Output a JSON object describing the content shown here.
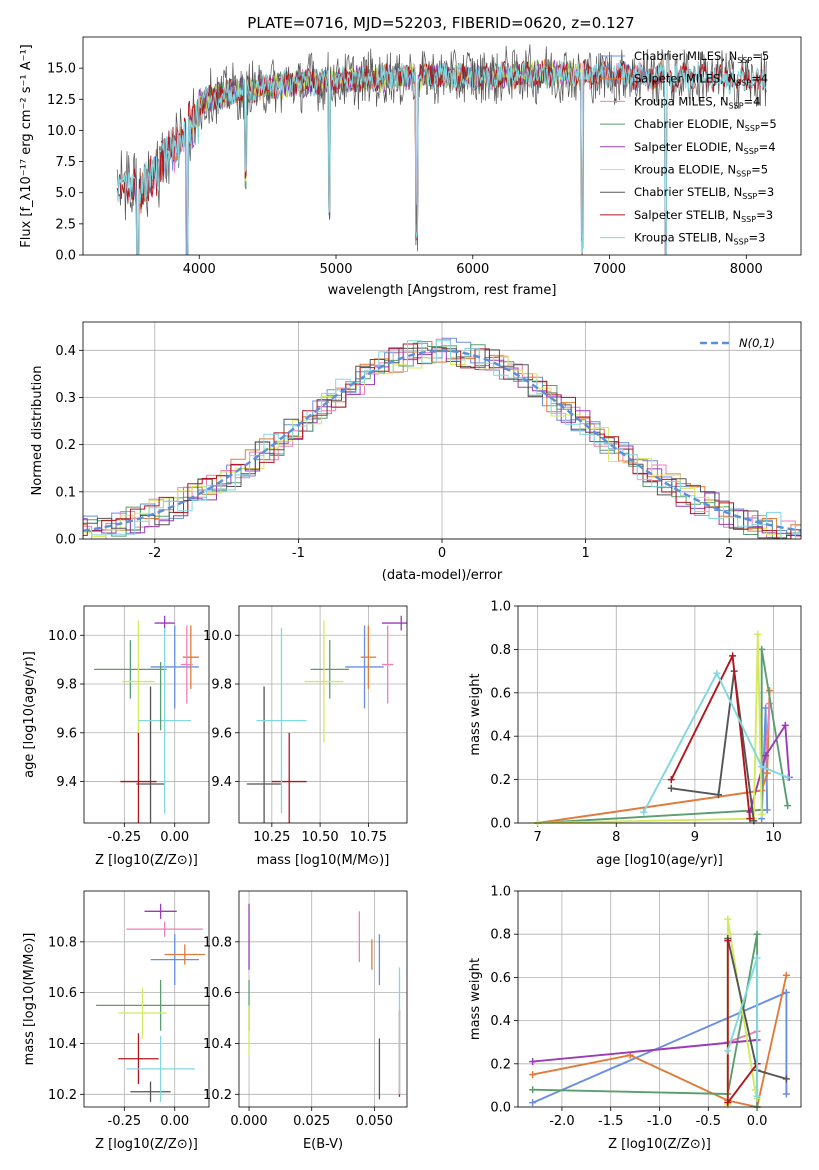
{
  "colors": {
    "Chabrier MILES": "#6a8fe0",
    "Salpeter MILES": "#e07b39",
    "Kroupa MILES": "#f07fb8",
    "Chabrier ELODIE": "#5a9e6f",
    "Salpeter ELODIE": "#9b3bb8",
    "Kroupa ELODIE": "#d4e860",
    "Chabrier STELIB": "#555555",
    "Salpeter STELIB": "#b0171e",
    "Kroupa STELIB": "#80d8e0",
    "dgeom": "#3a3a3a"
  },
  "chart_data": [
    {
      "id": "spectrum",
      "type": "line",
      "title": "PLATE=0716, MJD=52203, FIBERID=0620, z=0.127",
      "xlabel": "wavelength [Angstrom, rest frame]",
      "ylabel": "Flux [f_λ10⁻¹⁷ erg cm⁻² s⁻¹ A⁻¹]",
      "xlim": [
        3150,
        8400
      ],
      "ylim": [
        0,
        17.5
      ],
      "xticks": [
        4000,
        5000,
        6000,
        7000,
        8000
      ],
      "yticks": [
        0.0,
        2.5,
        5.0,
        7.5,
        10.0,
        12.5,
        15.0
      ],
      "legend_position": "right",
      "grid": false,
      "continuum": {
        "x": [
          3400,
          3500,
          3600,
          3700,
          3800,
          3900,
          4000,
          4200,
          4400,
          4600,
          4800,
          5000,
          5200,
          5400,
          5600,
          5800,
          6000,
          6200,
          6400,
          6600,
          6800,
          7000,
          7200,
          7400,
          7600,
          7800,
          8000,
          8150
        ],
        "y": [
          7.0,
          6.5,
          6.5,
          8.5,
          9.5,
          11.0,
          12.2,
          13.0,
          13.3,
          13.6,
          13.9,
          14.0,
          14.1,
          14.2,
          14.3,
          14.4,
          14.3,
          14.4,
          14.5,
          14.5,
          14.5,
          14.4,
          14.4,
          14.3,
          14.3,
          14.2,
          14.0,
          13.8
        ]
      },
      "series": [
        {
          "name": "Chabrier MILES",
          "nssp": "5"
        },
        {
          "name": "Salpeter MILES",
          "nssp": "4"
        },
        {
          "name": "Kroupa MILES",
          "nssp": "4"
        },
        {
          "name": "Chabrier ELODIE",
          "nssp": "5"
        },
        {
          "name": "Salpeter ELODIE",
          "nssp": "4"
        },
        {
          "name": "Kroupa ELODIE",
          "nssp": "5"
        },
        {
          "name": "Chabrier STELIB",
          "nssp": "3"
        },
        {
          "name": "Salpeter STELIB",
          "nssp": "3"
        },
        {
          "name": "Kroupa STELIB",
          "nssp": "3"
        }
      ],
      "range_x": {
        "Chabrier MILES": [
          3500,
          7410
        ],
        "Salpeter MILES": [
          3550,
          7410
        ],
        "Kroupa MILES": [
          3550,
          7410
        ],
        "Chabrier ELODIE": [
          3910,
          6800
        ],
        "Salpeter ELODIE": [
          3910,
          6800
        ],
        "Kroupa ELODIE": [
          3910,
          6800
        ],
        "Chabrier STELIB": [
          3400,
          8150
        ],
        "Salpeter STELIB": [
          3400,
          8150
        ],
        "Kroupa STELIB": [
          3400,
          8150
        ]
      },
      "absorption_lines": [
        {
          "x": 3550,
          "depth": 12
        },
        {
          "x": 3910,
          "depth": 15
        },
        {
          "x": 4340,
          "depth": 7
        },
        {
          "x": 4950,
          "depth": 10
        },
        {
          "x": 5590,
          "depth": 12
        },
        {
          "x": 6800,
          "depth": 14
        },
        {
          "x": 7410,
          "depth": 15
        }
      ]
    },
    {
      "id": "residuals",
      "type": "line",
      "xlabel": "(data-model)/error",
      "ylabel": "Normed distribution",
      "xlim": [
        -2.5,
        2.5
      ],
      "ylim": [
        0,
        0.46
      ],
      "xticks": [
        -2,
        -1,
        0,
        1,
        2
      ],
      "yticks": [
        0.0,
        0.1,
        0.2,
        0.3,
        0.4
      ],
      "grid": true,
      "reference_label": "N(0,1)",
      "legend_position": "upper right"
    },
    {
      "id": "age_vs_Z",
      "type": "scatter",
      "xlabel": "Z [log10(Z/Z⊙)]",
      "ylabel": "age [log10(age/yr)]",
      "xlim": [
        -0.45,
        0.17
      ],
      "ylim": [
        9.23,
        10.12
      ],
      "xticks": [
        -0.25,
        0.0
      ],
      "yticks": [
        9.4,
        9.6,
        9.8,
        10.0
      ],
      "grid": true,
      "points": [
        {
          "name": "Chabrier MILES",
          "x": 0.0,
          "xerr": 0.12,
          "y": 9.87,
          "yerr": 0.17
        },
        {
          "name": "Salpeter MILES",
          "x": 0.08,
          "xerr": 0.04,
          "y": 9.91,
          "yerr": 0.13
        },
        {
          "name": "Kroupa MILES",
          "x": 0.06,
          "xerr": 0.03,
          "y": 9.88,
          "yerr": 0.16
        },
        {
          "name": "Chabrier ELODIE",
          "x": -0.22,
          "xerr": 0.18,
          "y": 9.86,
          "yerr": 0.12
        },
        {
          "name": "Salpeter ELODIE",
          "x": -0.05,
          "xerr": 0.05,
          "y": 10.05,
          "yerr": 0.03
        },
        {
          "name": "Kroupa ELODIE",
          "x": -0.18,
          "xerr": 0.08,
          "y": 9.81,
          "yerr": 0.25
        },
        {
          "name": "Chabrier STELIB",
          "x": -0.12,
          "xerr": 0.07,
          "y": 9.39,
          "yerr": 0.4
        },
        {
          "name": "Salpeter STELIB",
          "x": -0.18,
          "xerr": 0.09,
          "y": 9.4,
          "yerr": 0.2
        },
        {
          "name": "Kroupa STELIB",
          "x": -0.05,
          "xerr": 0.13,
          "y": 9.65,
          "yerr": 0.38
        },
        {
          "name": "Chabrier ELODIE",
          "x": -0.07,
          "xerr": 0.0,
          "y": 9.75,
          "yerr": 0.14
        }
      ]
    },
    {
      "id": "age_vs_mass",
      "type": "scatter",
      "xlabel": "mass [log10(M/M⊙)]",
      "xlim": [
        10.08,
        10.95
      ],
      "ylim": [
        9.23,
        10.12
      ],
      "xticks": [
        10.25,
        10.5,
        10.75
      ],
      "yticks": [
        9.4,
        9.6,
        9.8,
        10.0
      ],
      "grid": true,
      "points": [
        {
          "name": "Chabrier MILES",
          "x": 10.73,
          "xerr": 0.1,
          "y": 9.87,
          "yerr": 0.17
        },
        {
          "name": "Salpeter MILES",
          "x": 10.75,
          "xerr": 0.04,
          "y": 9.91,
          "yerr": 0.13
        },
        {
          "name": "Kroupa MILES",
          "x": 10.85,
          "xerr": 0.03,
          "y": 9.88,
          "yerr": 0.16
        },
        {
          "name": "Chabrier ELODIE",
          "x": 10.55,
          "xerr": 0.1,
          "y": 9.86,
          "yerr": 0.12
        },
        {
          "name": "Salpeter ELODIE",
          "x": 10.92,
          "xerr": 0.1,
          "y": 10.05,
          "yerr": 0.03
        },
        {
          "name": "Kroupa ELODIE",
          "x": 10.52,
          "xerr": 0.1,
          "y": 9.81,
          "yerr": 0.25
        },
        {
          "name": "Chabrier STELIB",
          "x": 10.21,
          "xerr": 0.09,
          "y": 9.39,
          "yerr": 0.4
        },
        {
          "name": "Salpeter STELIB",
          "x": 10.34,
          "xerr": 0.09,
          "y": 9.4,
          "yerr": 0.2
        },
        {
          "name": "Kroupa STELIB",
          "x": 10.3,
          "xerr": 0.13,
          "y": 9.65,
          "yerr": 0.38
        }
      ]
    },
    {
      "id": "weight_vs_age",
      "type": "line",
      "xlabel": "age [log10(age/yr)]",
      "ylabel": "mass weight",
      "xlim": [
        6.75,
        10.35
      ],
      "ylim": [
        0,
        1.0
      ],
      "xticks": [
        7,
        8,
        9,
        10
      ],
      "yticks": [
        0.0,
        0.2,
        0.4,
        0.6,
        0.8,
        1.0
      ],
      "grid": true,
      "series": [
        {
          "name": "Chabrier MILES",
          "x": [
            9.85,
            9.9,
            9.92
          ],
          "y": [
            0.02,
            0.53,
            0.06
          ]
        },
        {
          "name": "Salpeter MILES",
          "x": [
            7.0,
            9.85,
            9.92,
            9.95
          ],
          "y": [
            0.0,
            0.15,
            0.23,
            0.61
          ]
        },
        {
          "name": "Kroupa MILES",
          "x": [
            9.9,
            9.95
          ],
          "y": [
            0.3,
            0.55
          ]
        },
        {
          "name": "Chabrier ELODIE",
          "x": [
            7.0,
            9.85,
            9.85,
            10.18
          ],
          "y": [
            0.0,
            0.06,
            0.8,
            0.08
          ]
        },
        {
          "name": "Salpeter ELODIE",
          "x": [
            9.7,
            9.9,
            10.15,
            10.2
          ],
          "y": [
            0.05,
            0.31,
            0.45,
            0.21
          ]
        },
        {
          "name": "Kroupa ELODIE",
          "x": [
            7.0,
            9.75,
            9.8,
            9.85
          ],
          "y": [
            0.0,
            0.02,
            0.87,
            0.04
          ]
        },
        {
          "name": "Chabrier STELIB",
          "x": [
            8.7,
            9.3,
            9.5,
            9.75
          ],
          "y": [
            0.16,
            0.13,
            0.7,
            0.01
          ]
        },
        {
          "name": "Salpeter STELIB",
          "x": [
            8.7,
            9.48,
            9.7
          ],
          "y": [
            0.2,
            0.77,
            0.02
          ]
        },
        {
          "name": "Kroupa STELIB",
          "x": [
            8.35,
            9.28,
            9.85,
            10.18
          ],
          "y": [
            0.05,
            0.69,
            0.26,
            0.21
          ]
        }
      ]
    },
    {
      "id": "mass_vs_Z",
      "type": "scatter",
      "xlabel": "Z [log10(Z/Z⊙)]",
      "ylabel": "mass [log10(M/M⊙)]",
      "xlim": [
        -0.45,
        0.17
      ],
      "ylim": [
        10.15,
        11.0
      ],
      "xticks": [
        -0.25,
        0.0
      ],
      "yticks": [
        10.2,
        10.4,
        10.6,
        10.8
      ],
      "grid": true,
      "points": [
        {
          "name": "Chabrier MILES",
          "x": 0.0,
          "xerr": 0.12,
          "y": 10.73,
          "yerr": 0.1
        },
        {
          "name": "Salpeter MILES",
          "x": 0.05,
          "xerr": 0.1,
          "y": 10.75,
          "yerr": 0.04
        },
        {
          "name": "Kroupa MILES",
          "x": -0.05,
          "xerr": 0.19,
          "y": 10.85,
          "yerr": 0.03
        },
        {
          "name": "Chabrier ELODIE",
          "x": -0.07,
          "xerr": 0.32,
          "y": 10.55,
          "yerr": 0.1
        },
        {
          "name": "Salpeter ELODIE",
          "x": -0.07,
          "xerr": 0.08,
          "y": 10.92,
          "yerr": 0.03
        },
        {
          "name": "Kroupa ELODIE",
          "x": -0.16,
          "xerr": 0.12,
          "y": 10.52,
          "yerr": 0.1
        },
        {
          "name": "Chabrier STELIB",
          "x": -0.12,
          "xerr": 0.1,
          "y": 10.21,
          "yerr": 0.04
        },
        {
          "name": "Salpeter STELIB",
          "x": -0.18,
          "xerr": 0.1,
          "y": 10.34,
          "yerr": 0.1
        },
        {
          "name": "Kroupa STELIB",
          "x": -0.07,
          "xerr": 0.17,
          "y": 10.3,
          "yerr": 0.13
        }
      ]
    },
    {
      "id": "mass_vs_ebv",
      "type": "scatter",
      "xlabel": "E(B-V)",
      "xlim": [
        -0.004,
        0.063
      ],
      "ylim": [
        10.15,
        11.0
      ],
      "xticks": [
        0.0,
        0.025,
        0.05
      ],
      "yticks": [
        10.2,
        10.4,
        10.6,
        10.8
      ],
      "grid": true,
      "points": [
        {
          "name": "Chabrier MILES",
          "x": 0.052,
          "y": 10.73,
          "yerr": 0.1
        },
        {
          "name": "Salpeter MILES",
          "x": 0.049,
          "y": 10.75,
          "yerr": 0.06
        },
        {
          "name": "Kroupa MILES",
          "x": 0.044,
          "y": 10.82,
          "yerr": 0.1
        },
        {
          "name": "Chabrier ELODIE",
          "x": 0.0,
          "y": 10.55,
          "yerr": 0.1
        },
        {
          "name": "Salpeter ELODIE",
          "x": 0.0,
          "y": 10.82,
          "yerr": 0.13
        },
        {
          "name": "Kroupa ELODIE",
          "x": 0.0,
          "y": 10.45,
          "yerr": 0.1
        },
        {
          "name": "Chabrier STELIB",
          "x": 0.052,
          "y": 10.3,
          "yerr": 0.12
        },
        {
          "name": "Salpeter STELIB",
          "x": 0.06,
          "y": 10.36,
          "yerr": 0.17
        },
        {
          "name": "Kroupa STELIB",
          "x": 0.06,
          "y": 10.45,
          "yerr": 0.25
        }
      ]
    },
    {
      "id": "weight_vs_Z",
      "type": "line",
      "xlabel": "Z [log10(Z/Z⊙)]",
      "ylabel": "mass weight",
      "xlim": [
        -2.45,
        0.45
      ],
      "ylim": [
        0,
        1.0
      ],
      "xticks": [
        -2.0,
        -1.5,
        -1.0,
        -0.5,
        0.0
      ],
      "yticks": [
        0.0,
        0.2,
        0.4,
        0.6,
        0.8,
        1.0
      ],
      "grid": true,
      "series": [
        {
          "name": "Chabrier MILES",
          "x": [
            -2.3,
            0.3,
            0.3
          ],
          "y": [
            0.02,
            0.53,
            0.06
          ]
        },
        {
          "name": "Salpeter MILES",
          "x": [
            -2.3,
            -1.3,
            -0.3,
            0.0,
            0.3
          ],
          "y": [
            0.15,
            0.24,
            0.03,
            0.0,
            0.61
          ]
        },
        {
          "name": "Kroupa MILES",
          "x": [
            -0.3,
            0.0
          ],
          "y": [
            0.3,
            0.35
          ]
        },
        {
          "name": "Chabrier ELODIE",
          "x": [
            -2.3,
            -0.3,
            0.0,
            0.0
          ],
          "y": [
            0.08,
            0.06,
            0.8,
            0.0
          ]
        },
        {
          "name": "Salpeter ELODIE",
          "x": [
            -2.3,
            0.0
          ],
          "y": [
            0.21,
            0.31
          ]
        },
        {
          "name": "Kroupa ELODIE",
          "x": [
            -0.3,
            -0.3,
            -0.02,
            0.0
          ],
          "y": [
            0.01,
            0.87,
            0.08,
            0.04
          ]
        },
        {
          "name": "Chabrier STELIB",
          "x": [
            -0.3,
            0.0,
            0.3
          ],
          "y": [
            0.78,
            0.17,
            0.13
          ]
        },
        {
          "name": "Salpeter STELIB",
          "x": [
            -0.3,
            -0.3,
            0.0
          ],
          "y": [
            0.77,
            0.02,
            0.2
          ]
        },
        {
          "name": "Kroupa STELIB",
          "x": [
            -0.3,
            0.0,
            0.0
          ],
          "y": [
            0.26,
            0.69,
            0.05
          ]
        }
      ]
    }
  ]
}
